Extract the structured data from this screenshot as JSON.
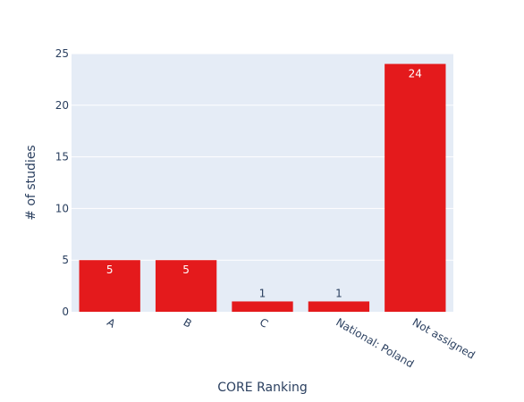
{
  "chart_data": {
    "type": "bar",
    "title": "",
    "xlabel": "CORE Ranking",
    "ylabel": "# of studies",
    "categories": [
      "A",
      "B",
      "C",
      "National: Poland",
      "Not assigned"
    ],
    "values": [
      5,
      5,
      1,
      1,
      24
    ],
    "data_labels": [
      "5",
      "5",
      "1",
      "1",
      "24"
    ],
    "ylim": [
      0,
      25
    ],
    "yticks": [
      0,
      5,
      10,
      15,
      20,
      25
    ],
    "grid": true,
    "legend": "none",
    "colors": {
      "bar": "#e41a1c",
      "plot_background": "#e5ecf6",
      "gridline": "#ffffff",
      "tick_text": "#2a3f5f",
      "label_inside": "#ffffff",
      "label_outside": "#2a3f5f"
    }
  }
}
